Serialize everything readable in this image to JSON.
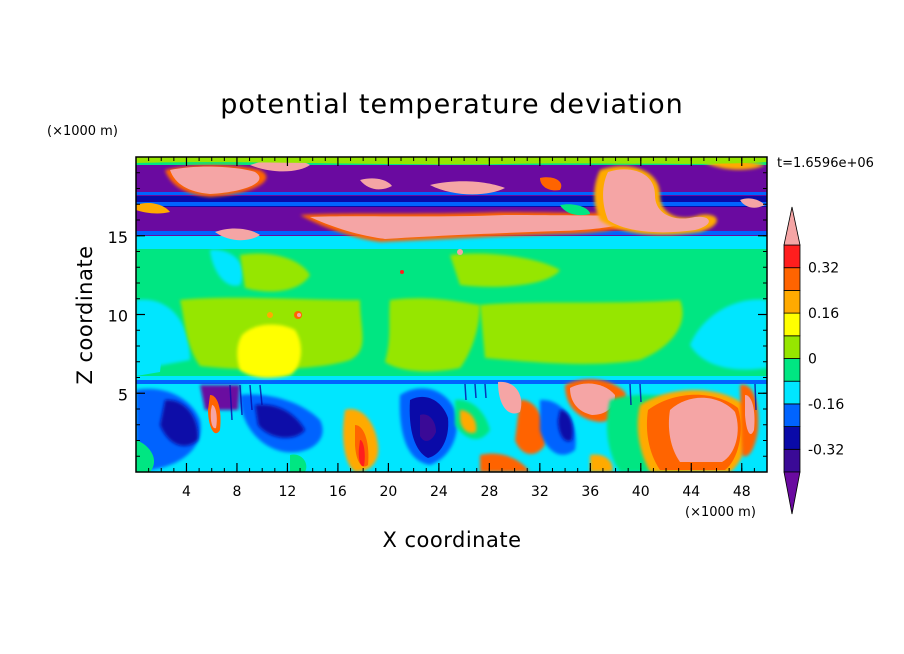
{
  "chart_data": {
    "type": "heatmap",
    "title": "potential temperature deviation",
    "xlabel": "X coordinate",
    "ylabel": "Z coordinate",
    "x_unit": "(×1000 m)",
    "y_unit": "(×1000 m)",
    "time_label": "t=1.6596e+06",
    "xlim": [
      0,
      50
    ],
    "ylim": [
      0,
      20
    ],
    "x_ticks": [
      4,
      8,
      12,
      16,
      20,
      24,
      28,
      32,
      36,
      40,
      44,
      48
    ],
    "y_ticks": [
      5,
      10,
      15
    ],
    "colorbar": {
      "levels": [
        -0.4,
        -0.32,
        -0.24,
        -0.16,
        -0.08,
        0,
        0.08,
        0.16,
        0.24,
        0.32,
        0.4
      ],
      "labels": [
        "0.32",
        "0.16",
        "0",
        "-0.16",
        "-0.32"
      ],
      "label_values": [
        0.32,
        0.16,
        0,
        -0.16,
        -0.32
      ],
      "colors": [
        "#3a0a96",
        "#0a0aa8",
        "#0064ff",
        "#00e6ff",
        "#00e682",
        "#96e600",
        "#ffff00",
        "#ffaa00",
        "#ff6400",
        "#ff1e1e"
      ],
      "over_color": "#f5a5a5",
      "under_color": "#6a0aa0"
    },
    "bands": [
      {
        "z": [
          19.5,
          20.0
        ],
        "level": "-0.32"
      },
      {
        "z": [
          16.6,
          19.5
        ],
        "level": "< -0.32"
      },
      {
        "z": [
          15.0,
          16.6
        ],
        "level": "< -0.32"
      },
      {
        "z": [
          14.0,
          15.0
        ],
        "level": "0"
      },
      {
        "z": [
          10.5,
          14.0
        ],
        "level": "0"
      },
      {
        "z": [
          6.0,
          10.5
        ],
        "level": "0.08"
      },
      {
        "z": [
          5.5,
          6.0
        ],
        "level": "-0.08"
      },
      {
        "z": [
          0,
          5.5
        ],
        "level": "mixed"
      }
    ],
    "warm_features": [
      {
        "x": 44,
        "z": 2.5,
        "level": "> 0.32"
      },
      {
        "x": 10,
        "z": 7.5,
        "level": "0.16"
      },
      {
        "x": 37,
        "z": 4.8,
        "level": "> 0.32"
      },
      {
        "x": 31,
        "z": 5.0,
        "level": "> 0.32"
      }
    ]
  }
}
